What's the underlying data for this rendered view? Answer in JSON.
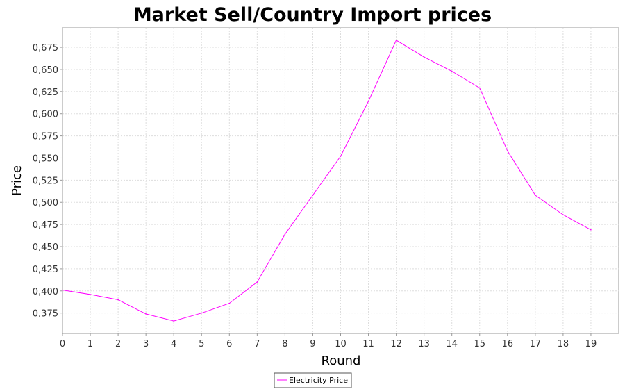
{
  "chart_data": {
    "type": "line",
    "title": "Market Sell/Country Import prices",
    "xlabel": "Round",
    "ylabel": "Price",
    "xlim": [
      0,
      20
    ],
    "ylim": [
      0.352,
      0.697
    ],
    "x_ticks": [
      "0",
      "1",
      "2",
      "3",
      "4",
      "5",
      "6",
      "7",
      "8",
      "9",
      "10",
      "11",
      "12",
      "13",
      "14",
      "15",
      "16",
      "17",
      "18",
      "19"
    ],
    "y_ticks": [
      "0,375",
      "0,400",
      "0,425",
      "0,450",
      "0,475",
      "0,500",
      "0,525",
      "0,550",
      "0,575",
      "0,600",
      "0,625",
      "0,650",
      "0,675"
    ],
    "grid": true,
    "legend_position": "bottom-center",
    "colors": {
      "series": "#ff00ff",
      "grid": "#dddddd",
      "plot_border": "#999999"
    },
    "series": [
      {
        "name": "Electricity Price",
        "x": [
          0,
          1,
          2,
          3,
          4,
          5,
          6,
          7,
          8,
          9,
          10,
          11,
          12,
          13,
          14,
          15,
          16,
          17,
          18,
          19
        ],
        "values": [
          0.401,
          0.396,
          0.39,
          0.374,
          0.366,
          0.375,
          0.386,
          0.41,
          0.464,
          0.508,
          0.552,
          0.614,
          0.683,
          0.664,
          0.648,
          0.629,
          0.558,
          0.508,
          0.486,
          0.469
        ]
      }
    ]
  }
}
